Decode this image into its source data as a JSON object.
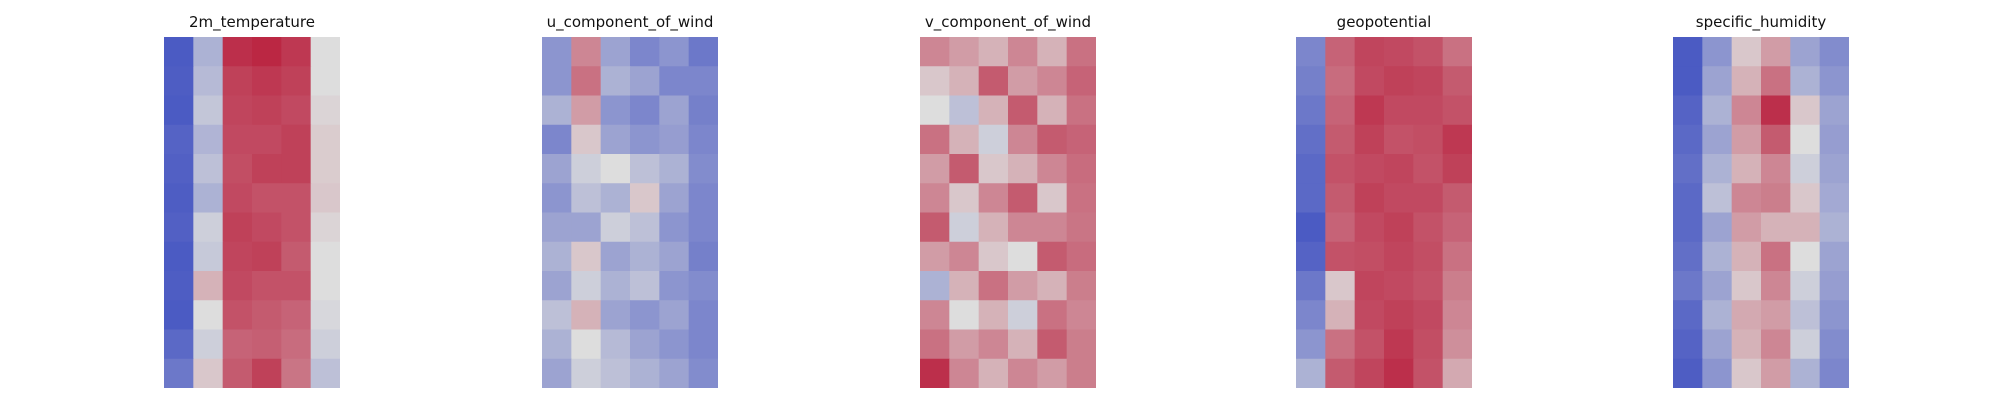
{
  "figure": {
    "background": "#ffffff",
    "colormap": {
      "name": "coolwarm",
      "low": "#3b4cc0",
      "mid": "#dddddd",
      "high": "#b40426"
    }
  },
  "chart_data": [
    {
      "type": "heatmap",
      "title": "2m_temperature",
      "grid": false,
      "axes_visible": false,
      "rows": 12,
      "cols": 6,
      "values": [
        [
          0.05,
          0.35,
          0.9,
          0.92,
          0.88,
          0.5
        ],
        [
          0.06,
          0.38,
          0.86,
          0.88,
          0.86,
          0.5
        ],
        [
          0.05,
          0.42,
          0.85,
          0.86,
          0.84,
          0.52
        ],
        [
          0.08,
          0.36,
          0.84,
          0.84,
          0.86,
          0.54
        ],
        [
          0.07,
          0.4,
          0.83,
          0.86,
          0.86,
          0.54
        ],
        [
          0.06,
          0.35,
          0.84,
          0.82,
          0.82,
          0.55
        ],
        [
          0.07,
          0.45,
          0.86,
          0.84,
          0.82,
          0.52
        ],
        [
          0.05,
          0.43,
          0.85,
          0.86,
          0.8,
          0.5
        ],
        [
          0.06,
          0.6,
          0.84,
          0.82,
          0.82,
          0.5
        ],
        [
          0.05,
          0.5,
          0.82,
          0.8,
          0.78,
          0.48
        ],
        [
          0.1,
          0.45,
          0.78,
          0.79,
          0.76,
          0.45
        ],
        [
          0.15,
          0.55,
          0.8,
          0.86,
          0.74,
          0.4
        ]
      ]
    },
    {
      "type": "heatmap",
      "title": "u_component_of_wind",
      "grid": false,
      "axes_visible": false,
      "rows": 12,
      "cols": 6,
      "values": [
        [
          0.25,
          0.7,
          0.3,
          0.2,
          0.25,
          0.15
        ],
        [
          0.25,
          0.75,
          0.35,
          0.3,
          0.2,
          0.2
        ],
        [
          0.35,
          0.65,
          0.25,
          0.2,
          0.3,
          0.18
        ],
        [
          0.2,
          0.55,
          0.3,
          0.25,
          0.28,
          0.2
        ],
        [
          0.3,
          0.45,
          0.5,
          0.4,
          0.35,
          0.22
        ],
        [
          0.25,
          0.4,
          0.35,
          0.55,
          0.3,
          0.2
        ],
        [
          0.3,
          0.3,
          0.45,
          0.4,
          0.25,
          0.2
        ],
        [
          0.35,
          0.55,
          0.3,
          0.35,
          0.3,
          0.18
        ],
        [
          0.3,
          0.45,
          0.35,
          0.4,
          0.25,
          0.22
        ],
        [
          0.4,
          0.6,
          0.3,
          0.25,
          0.3,
          0.2
        ],
        [
          0.35,
          0.5,
          0.38,
          0.3,
          0.25,
          0.2
        ],
        [
          0.3,
          0.45,
          0.4,
          0.35,
          0.3,
          0.22
        ]
      ]
    },
    {
      "type": "heatmap",
      "title": "v_component_of_wind",
      "grid": false,
      "axes_visible": false,
      "rows": 12,
      "cols": 6,
      "values": [
        [
          0.7,
          0.65,
          0.6,
          0.7,
          0.6,
          0.75
        ],
        [
          0.55,
          0.6,
          0.8,
          0.65,
          0.7,
          0.78
        ],
        [
          0.5,
          0.4,
          0.6,
          0.8,
          0.6,
          0.75
        ],
        [
          0.75,
          0.6,
          0.45,
          0.7,
          0.8,
          0.78
        ],
        [
          0.65,
          0.8,
          0.55,
          0.6,
          0.7,
          0.76
        ],
        [
          0.7,
          0.55,
          0.7,
          0.8,
          0.55,
          0.75
        ],
        [
          0.8,
          0.45,
          0.6,
          0.7,
          0.7,
          0.74
        ],
        [
          0.65,
          0.7,
          0.55,
          0.5,
          0.8,
          0.76
        ],
        [
          0.35,
          0.6,
          0.75,
          0.65,
          0.6,
          0.72
        ],
        [
          0.7,
          0.5,
          0.6,
          0.45,
          0.75,
          0.7
        ],
        [
          0.75,
          0.65,
          0.7,
          0.6,
          0.8,
          0.72
        ],
        [
          0.9,
          0.7,
          0.6,
          0.7,
          0.65,
          0.72
        ]
      ]
    },
    {
      "type": "heatmap",
      "title": "geopotential",
      "grid": false,
      "axes_visible": false,
      "rows": 12,
      "cols": 6,
      "values": [
        [
          0.2,
          0.78,
          0.85,
          0.84,
          0.82,
          0.75
        ],
        [
          0.18,
          0.76,
          0.84,
          0.86,
          0.85,
          0.8
        ],
        [
          0.15,
          0.78,
          0.88,
          0.84,
          0.84,
          0.82
        ],
        [
          0.12,
          0.8,
          0.86,
          0.82,
          0.83,
          0.88
        ],
        [
          0.1,
          0.82,
          0.84,
          0.85,
          0.82,
          0.86
        ],
        [
          0.1,
          0.8,
          0.86,
          0.84,
          0.84,
          0.8
        ],
        [
          0.05,
          0.78,
          0.84,
          0.86,
          0.82,
          0.78
        ],
        [
          0.08,
          0.82,
          0.83,
          0.85,
          0.83,
          0.75
        ],
        [
          0.15,
          0.55,
          0.85,
          0.84,
          0.82,
          0.72
        ],
        [
          0.2,
          0.6,
          0.84,
          0.86,
          0.84,
          0.7
        ],
        [
          0.25,
          0.75,
          0.82,
          0.88,
          0.83,
          0.68
        ],
        [
          0.35,
          0.8,
          0.85,
          0.9,
          0.82,
          0.62
        ]
      ]
    },
    {
      "type": "heatmap",
      "title": "specific_humidity",
      "grid": false,
      "axes_visible": false,
      "rows": 12,
      "cols": 6,
      "values": [
        [
          0.05,
          0.25,
          0.55,
          0.65,
          0.3,
          0.22
        ],
        [
          0.05,
          0.3,
          0.6,
          0.75,
          0.35,
          0.25
        ],
        [
          0.08,
          0.35,
          0.7,
          0.9,
          0.55,
          0.3
        ],
        [
          0.1,
          0.3,
          0.65,
          0.8,
          0.5,
          0.28
        ],
        [
          0.12,
          0.35,
          0.6,
          0.7,
          0.45,
          0.3
        ],
        [
          0.1,
          0.4,
          0.7,
          0.72,
          0.55,
          0.32
        ],
        [
          0.1,
          0.3,
          0.65,
          0.6,
          0.6,
          0.35
        ],
        [
          0.12,
          0.35,
          0.6,
          0.75,
          0.5,
          0.3
        ],
        [
          0.15,
          0.3,
          0.55,
          0.7,
          0.45,
          0.28
        ],
        [
          0.1,
          0.35,
          0.62,
          0.65,
          0.4,
          0.25
        ],
        [
          0.08,
          0.3,
          0.6,
          0.7,
          0.45,
          0.22
        ],
        [
          0.06,
          0.25,
          0.55,
          0.65,
          0.35,
          0.2
        ]
      ]
    }
  ]
}
